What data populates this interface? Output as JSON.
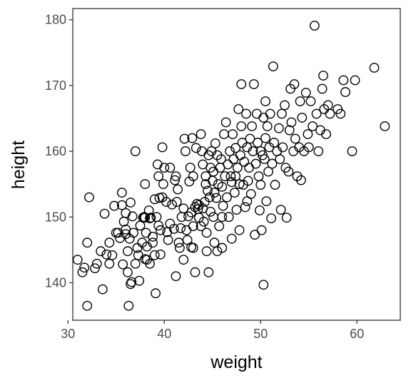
{
  "chart_data": {
    "type": "scatter",
    "title": "",
    "xlabel": "weight",
    "ylabel": "height",
    "xlim": [
      30.5,
      64.5
    ],
    "ylim": [
      134.3,
      181.7
    ],
    "x_ticks": [
      30,
      40,
      50,
      60
    ],
    "y_ticks": [
      140,
      150,
      160,
      170,
      180
    ],
    "x_tick_labels": [
      "30",
      "40",
      "50",
      "60"
    ],
    "y_tick_labels": [
      "140",
      "150",
      "160",
      "170",
      "180"
    ],
    "grid": false,
    "legend": "none",
    "marker": "open-circle",
    "colors": {
      "point_stroke": "#000000",
      "axis": "#333333",
      "tick_label": "#4d4d4d"
    },
    "series": [
      {
        "values": [
          [
            31.0,
            143.5
          ],
          [
            31.5,
            141.6
          ],
          [
            31.7,
            142.3
          ],
          [
            32.0,
            146.1
          ],
          [
            32.0,
            136.5
          ],
          [
            32.2,
            153.0
          ],
          [
            32.8,
            142.2
          ],
          [
            33.0,
            142.9
          ],
          [
            33.4,
            144.8
          ],
          [
            33.6,
            139.0
          ],
          [
            33.8,
            150.5
          ],
          [
            34.0,
            144.3
          ],
          [
            34.3,
            146.1
          ],
          [
            34.3,
            142.9
          ],
          [
            34.6,
            144.2
          ],
          [
            34.8,
            151.7
          ],
          [
            35.0,
            147.6
          ],
          [
            35.2,
            147.6
          ],
          [
            35.4,
            146.8
          ],
          [
            35.6,
            151.8
          ],
          [
            35.6,
            153.7
          ],
          [
            35.7,
            142.8
          ],
          [
            35.8,
            149.3
          ],
          [
            36.0,
            150.6
          ],
          [
            36.0,
            148.1
          ],
          [
            36.0,
            147.4
          ],
          [
            36.2,
            144.8
          ],
          [
            36.2,
            141.6
          ],
          [
            36.3,
            136.5
          ],
          [
            36.4,
            146.7
          ],
          [
            36.5,
            139.8
          ],
          [
            36.5,
            152.2
          ],
          [
            36.6,
            140.1
          ],
          [
            36.7,
            150.1
          ],
          [
            36.8,
            147.6
          ],
          [
            37.0,
            142.9
          ],
          [
            37.0,
            160.0
          ],
          [
            37.2,
            145.3
          ],
          [
            37.3,
            144.2
          ],
          [
            37.4,
            140.3
          ],
          [
            37.5,
            148.7
          ],
          [
            37.7,
            146.1
          ],
          [
            37.8,
            149.9
          ],
          [
            38.0,
            149.9
          ],
          [
            38.0,
            143.6
          ],
          [
            38.0,
            155.0
          ],
          [
            38.1,
            147.6
          ],
          [
            38.2,
            145.5
          ],
          [
            38.2,
            143.5
          ],
          [
            38.4,
            151.0
          ],
          [
            38.5,
            149.8
          ],
          [
            38.5,
            142.9
          ],
          [
            38.6,
            149.9
          ],
          [
            38.8,
            146.1
          ],
          [
            38.8,
            147.0
          ],
          [
            39.0,
            144.2
          ],
          [
            39.1,
            138.4
          ],
          [
            39.2,
            150.0
          ],
          [
            39.3,
            158.0
          ],
          [
            39.4,
            156.2
          ],
          [
            39.4,
            148.7
          ],
          [
            39.5,
            152.9
          ],
          [
            39.6,
            144.3
          ],
          [
            39.6,
            148.0
          ],
          [
            39.8,
            160.6
          ],
          [
            39.8,
            153.0
          ],
          [
            39.9,
            155.0
          ],
          [
            40.0,
            157.5
          ],
          [
            40.2,
            152.3
          ],
          [
            40.3,
            147.7
          ],
          [
            40.4,
            146.5
          ],
          [
            40.6,
            157.5
          ],
          [
            40.6,
            149.0
          ],
          [
            40.8,
            151.9
          ],
          [
            41.0,
            148.2
          ],
          [
            41.2,
            141.0
          ],
          [
            41.2,
            156.2
          ],
          [
            41.3,
            152.3
          ],
          [
            41.4,
            154.2
          ],
          [
            41.5,
            146.1
          ],
          [
            41.6,
            145.3
          ],
          [
            41.7,
            148.3
          ],
          [
            41.8,
            150.0
          ],
          [
            42.0,
            143.5
          ],
          [
            42.0,
            151.3
          ],
          [
            42.1,
            161.9
          ],
          [
            42.2,
            160.0
          ],
          [
            42.3,
            148.0
          ],
          [
            42.4,
            146.5
          ],
          [
            42.5,
            150.1
          ],
          [
            42.6,
            155.4
          ],
          [
            42.7,
            157.5
          ],
          [
            42.8,
            145.4
          ],
          [
            42.8,
            150.7
          ],
          [
            42.9,
            162.0
          ],
          [
            43.0,
            156.2
          ],
          [
            43.0,
            148.6
          ],
          [
            43.0,
            145.3
          ],
          [
            43.2,
            151.5
          ],
          [
            43.2,
            141.6
          ],
          [
            43.3,
            160.5
          ],
          [
            43.4,
            152.0
          ],
          [
            43.6,
            151.8
          ],
          [
            43.6,
            149.9
          ],
          [
            43.8,
            162.6
          ],
          [
            43.8,
            148.6
          ],
          [
            43.9,
            160.0
          ],
          [
            44.0,
            151.3
          ],
          [
            44.0,
            158.0
          ],
          [
            44.1,
            149.3
          ],
          [
            44.2,
            152.3
          ],
          [
            44.3,
            156.2
          ],
          [
            44.3,
            155.0
          ],
          [
            44.4,
            147.6
          ],
          [
            44.4,
            144.8
          ],
          [
            44.5,
            154.0
          ],
          [
            44.6,
            141.6
          ],
          [
            44.6,
            159.4
          ],
          [
            44.7,
            153.0
          ],
          [
            44.8,
            157.5
          ],
          [
            44.8,
            150.8
          ],
          [
            44.9,
            160.0
          ],
          [
            45.0,
            155.5
          ],
          [
            45.1,
            156.9
          ],
          [
            45.1,
            150.0
          ],
          [
            45.2,
            153.7
          ],
          [
            45.2,
            146.1
          ],
          [
            45.3,
            161.2
          ],
          [
            45.4,
            152.9
          ],
          [
            45.5,
            159.4
          ],
          [
            45.6,
            155.0
          ],
          [
            45.7,
            148.6
          ],
          [
            45.8,
            157.5
          ],
          [
            45.9,
            158.8
          ],
          [
            46.0,
            154.6
          ],
          [
            46.0,
            145.3
          ],
          [
            46.1,
            151.7
          ],
          [
            46.2,
            162.6
          ],
          [
            46.3,
            156.2
          ],
          [
            46.4,
            164.4
          ],
          [
            46.5,
            153.0
          ],
          [
            46.6,
            158.0
          ],
          [
            46.7,
            150.0
          ],
          [
            46.8,
            160.0
          ],
          [
            46.9,
            156.2
          ],
          [
            47.0,
            146.7
          ],
          [
            47.0,
            155.3
          ],
          [
            47.1,
            162.6
          ],
          [
            47.2,
            158.8
          ],
          [
            47.3,
            153.7
          ],
          [
            47.4,
            160.5
          ],
          [
            47.5,
            151.1
          ],
          [
            47.6,
            157.5
          ],
          [
            47.7,
            166.4
          ],
          [
            47.8,
            155.0
          ],
          [
            47.8,
            148.0
          ],
          [
            47.9,
            159.4
          ],
          [
            48.0,
            163.8
          ],
          [
            48.0,
            170.2
          ],
          [
            48.1,
            161.3
          ],
          [
            48.2,
            154.9
          ],
          [
            48.3,
            158.4
          ],
          [
            48.4,
            151.5
          ],
          [
            48.5,
            165.7
          ],
          [
            48.6,
            160.6
          ],
          [
            48.7,
            155.5
          ],
          [
            48.8,
            157.5
          ],
          [
            48.9,
            161.9
          ],
          [
            49.0,
            153.5
          ],
          [
            49.1,
            163.8
          ],
          [
            49.2,
            160.0
          ],
          [
            49.3,
            170.2
          ],
          [
            49.4,
            147.3
          ],
          [
            49.5,
            158.1
          ],
          [
            49.6,
            165.7
          ],
          [
            49.7,
            161.3
          ],
          [
            49.8,
            156.2
          ],
          [
            49.9,
            151.0
          ],
          [
            50.0,
            160.0
          ],
          [
            50.0,
            154.9
          ],
          [
            50.1,
            148.0
          ],
          [
            50.2,
            159.4
          ],
          [
            50.3,
            165.1
          ],
          [
            50.4,
            158.8
          ],
          [
            50.5,
            167.6
          ],
          [
            50.5,
            162.0
          ],
          [
            50.6,
            152.4
          ],
          [
            50.7,
            163.8
          ],
          [
            50.8,
            156.9
          ],
          [
            50.9,
            160.6
          ],
          [
            51.0,
            165.7
          ],
          [
            51.1,
            149.8
          ],
          [
            51.2,
            158.1
          ],
          [
            51.3,
            172.9
          ],
          [
            51.4,
            161.3
          ],
          [
            51.5,
            154.9
          ],
          [
            51.7,
            160.0
          ],
          [
            51.9,
            163.5
          ],
          [
            52.0,
            158.8
          ],
          [
            52.1,
            151.1
          ],
          [
            52.2,
            165.7
          ],
          [
            52.3,
            160.6
          ],
          [
            52.5,
            167.0
          ],
          [
            52.6,
            157.5
          ],
          [
            52.7,
            149.9
          ],
          [
            52.9,
            156.9
          ],
          [
            53.0,
            163.2
          ],
          [
            53.1,
            169.5
          ],
          [
            53.2,
            164.4
          ],
          [
            53.4,
            160.0
          ],
          [
            53.5,
            170.2
          ],
          [
            53.6,
            161.9
          ],
          [
            53.8,
            156.2
          ],
          [
            54.0,
            160.6
          ],
          [
            54.1,
            167.6
          ],
          [
            54.2,
            155.6
          ],
          [
            54.3,
            165.1
          ],
          [
            54.5,
            160.0
          ],
          [
            54.7,
            168.9
          ],
          [
            54.9,
            162.6
          ],
          [
            55.0,
            160.6
          ],
          [
            55.2,
            167.6
          ],
          [
            55.4,
            163.8
          ],
          [
            55.6,
            179.1
          ],
          [
            55.8,
            165.7
          ],
          [
            56.0,
            160.0
          ],
          [
            56.2,
            163.2
          ],
          [
            56.4,
            169.5
          ],
          [
            56.5,
            171.5
          ],
          [
            56.6,
            166.4
          ],
          [
            56.8,
            162.6
          ],
          [
            57.0,
            167.0
          ],
          [
            57.2,
            165.7
          ],
          [
            58.0,
            166.4
          ],
          [
            58.3,
            165.7
          ],
          [
            58.6,
            170.8
          ],
          [
            58.8,
            169.0
          ],
          [
            59.5,
            160.0
          ],
          [
            59.8,
            170.8
          ],
          [
            61.8,
            172.7
          ],
          [
            62.9,
            163.8
          ],
          [
            50.3,
            139.7
          ],
          [
            46.0,
            150.0
          ],
          [
            45.5,
            144.8
          ],
          [
            47.4,
            156.2
          ],
          [
            48.6,
            152.4
          ],
          [
            43.5,
            151.2
          ],
          [
            41.1,
            155.6
          ],
          [
            39.0,
            152.7
          ],
          [
            37.9,
            150.0
          ]
        ]
      }
    ]
  }
}
